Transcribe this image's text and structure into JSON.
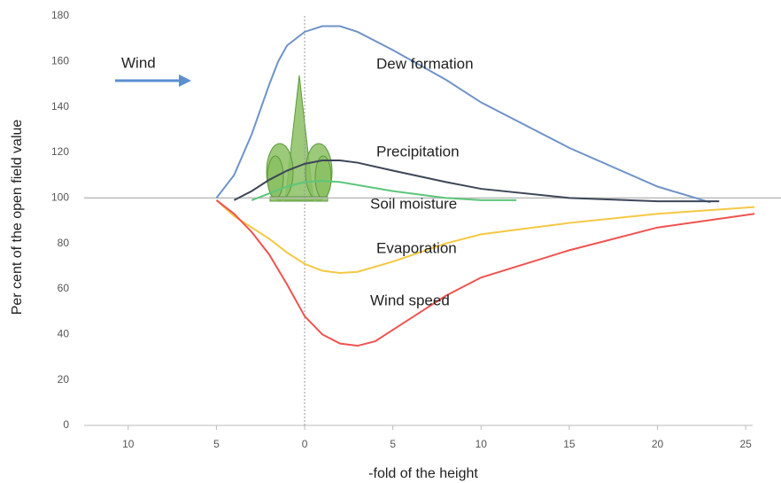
{
  "chart_data": {
    "type": "line",
    "ylabel": "Per cent of the open field value",
    "xlabel": "-fold of the height",
    "annotation": "Wind",
    "xlim": [
      -12.5,
      27
    ],
    "ylim": [
      0,
      180
    ],
    "xticks": [
      {
        "value": -10,
        "label": "10"
      },
      {
        "value": -5,
        "label": "5"
      },
      0,
      5,
      10,
      15,
      20,
      25
    ],
    "yticks": [
      0,
      20,
      40,
      60,
      80,
      100,
      120,
      140,
      160,
      180
    ],
    "reference_y": 100,
    "reference_x": 0,
    "series": [
      {
        "name": "Dew formation",
        "color": "#6f93c9",
        "x": [
          -5,
          -4,
          -3,
          -2,
          -1.5,
          -1,
          0,
          1,
          2,
          3,
          5,
          8,
          10,
          15,
          20,
          23
        ],
        "values": [
          100,
          110,
          128,
          150,
          160,
          167,
          173,
          175.5,
          175.5,
          173,
          165,
          152,
          142,
          122,
          105,
          98
        ]
      },
      {
        "name": "Precipitation",
        "color": "#3d4658",
        "x": [
          -4,
          -3,
          -2,
          -1,
          0,
          1,
          2,
          3,
          5,
          8,
          10,
          15,
          20,
          23.5
        ],
        "values": [
          99,
          103,
          108,
          112,
          115,
          116.5,
          116.5,
          115.5,
          112,
          107,
          104,
          100,
          98.5,
          98.5
        ]
      },
      {
        "name": "Soil moisture",
        "color": "#5cc67a",
        "x": [
          -3,
          -2,
          -1,
          0,
          1,
          2,
          5,
          8,
          10,
          12
        ],
        "values": [
          99,
          102,
          105,
          107,
          107.5,
          107,
          103,
          100,
          99,
          99
        ]
      },
      {
        "name": "Evaporation",
        "color": "#f5c842",
        "x": [
          -5,
          -4,
          -3,
          -2,
          -1,
          0,
          1,
          2,
          3,
          5,
          8,
          10,
          15,
          20,
          25.5
        ],
        "values": [
          99,
          92,
          87,
          82,
          76,
          71,
          68,
          67,
          67.5,
          72,
          80,
          84,
          89,
          93,
          96
        ]
      },
      {
        "name": "Wind speed",
        "color": "#ef5350",
        "x": [
          -5,
          -4,
          -3,
          -2,
          -1,
          0,
          1,
          2,
          3,
          4,
          5,
          8,
          10,
          15,
          20,
          25.5
        ],
        "values": [
          99,
          93,
          85,
          75,
          62,
          48,
          40,
          36,
          35,
          37,
          42,
          57,
          65,
          77,
          87,
          93
        ]
      }
    ]
  }
}
